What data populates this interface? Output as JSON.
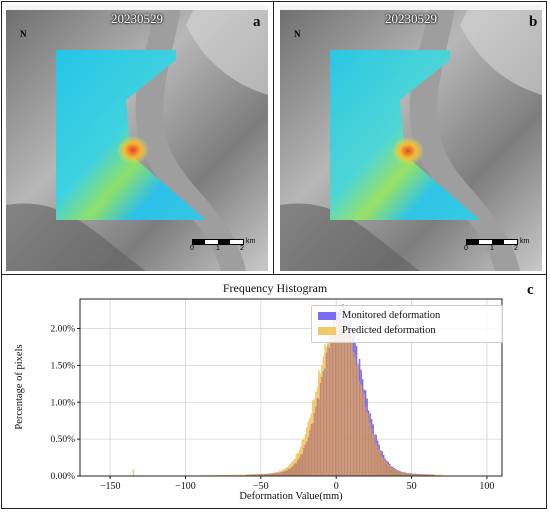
{
  "panels": [
    {
      "date": "20230529",
      "letter": "a"
    },
    {
      "date": "20230529",
      "letter": "b"
    }
  ],
  "north_label": "N",
  "scale": {
    "ticks": [
      "0",
      "1",
      "2"
    ],
    "unit": "km"
  },
  "histogram_letter": "c",
  "colors": {
    "monitored": "#7b6cf0",
    "predicted": "#f2c86a",
    "overlap": "#c38b6e"
  },
  "chart_data": {
    "type": "bar",
    "title": "Frequency Histogram",
    "xlabel": "Deformation Value(mm)",
    "ylabel": "Percentage of pixels",
    "xlim": [
      -170,
      110
    ],
    "ylim": [
      0,
      2.4
    ],
    "xticks": [
      -150,
      -100,
      -50,
      0,
      50,
      100
    ],
    "yticks": [
      0,
      0.5,
      1.0,
      1.5,
      2.0
    ],
    "ytick_labels": [
      "0.00%",
      "0.50%",
      "1.00%",
      "1.50%",
      "2.00%"
    ],
    "grid": true,
    "legend_position": "top-right",
    "series": [
      {
        "name": "Monitored deformation",
        "peak_percent": 2.25,
        "center": 4,
        "spread": 13,
        "min": -60,
        "max": 65
      },
      {
        "name": "Predicted deformation",
        "peak_percent": 2.2,
        "center": 2,
        "spread": 13.5,
        "min": -135,
        "max": 70
      }
    ]
  }
}
